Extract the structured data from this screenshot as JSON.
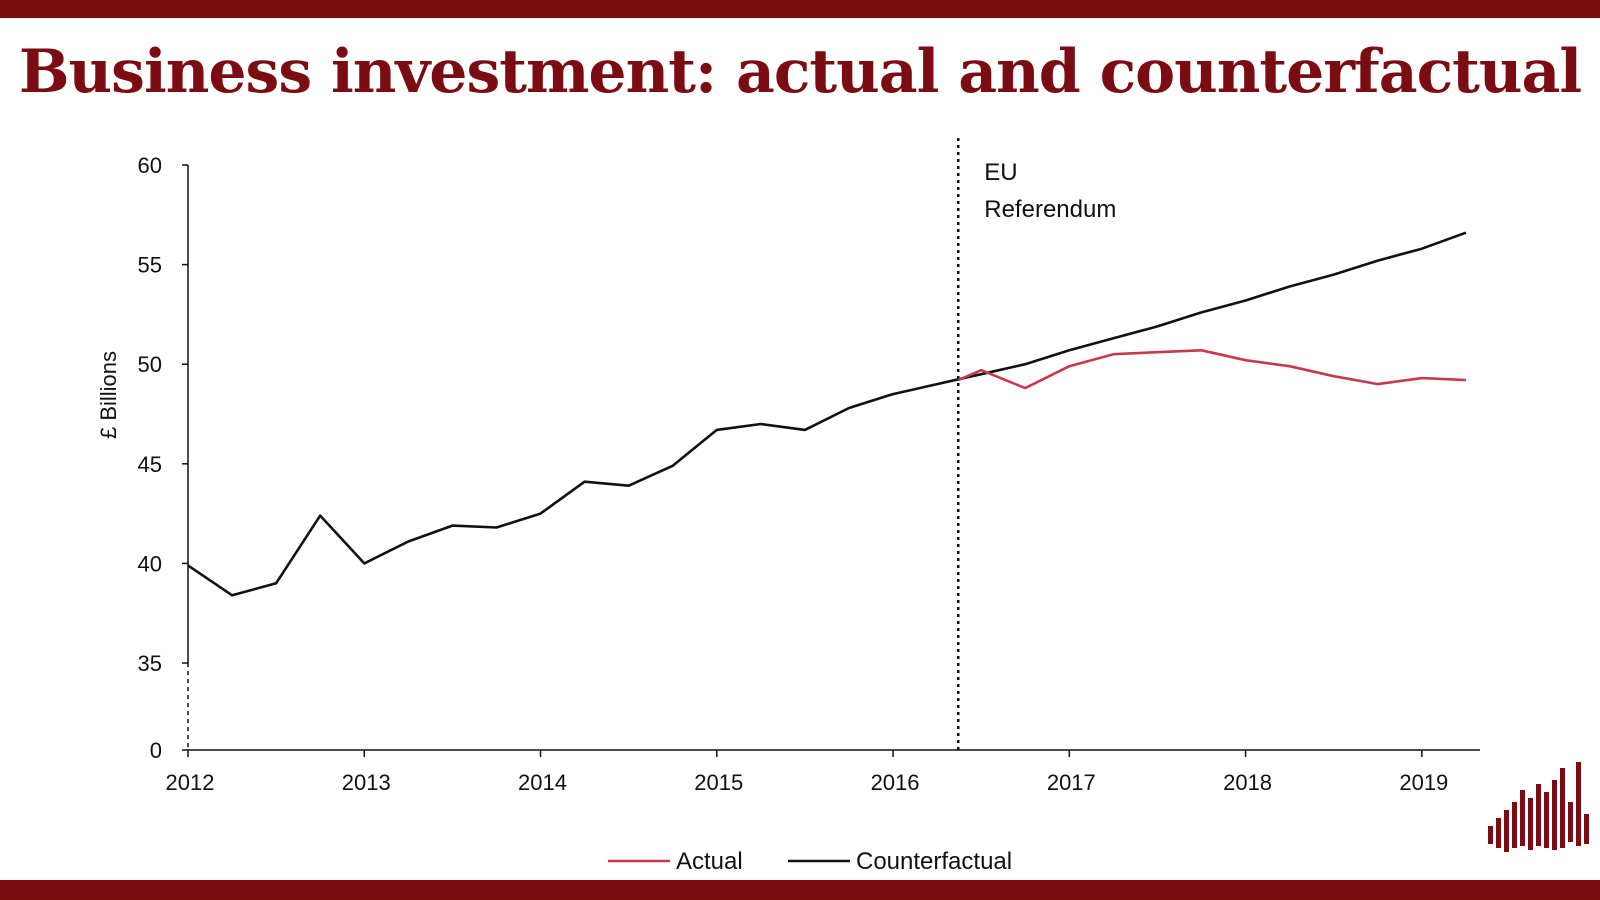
{
  "page": {
    "title": "Business investment: actual and counterfactual",
    "colors": {
      "brand": "#7a0c12",
      "actual": "#c8394d",
      "counterfactual": "#111111"
    },
    "logo_icon": "bar-waveform-logo-icon"
  },
  "chart_data": {
    "type": "line",
    "ylabel": "£ Billions",
    "xlabel": "",
    "xlim": [
      2012,
      2019.33
    ],
    "x_ticks": [
      2012,
      2013,
      2014,
      2015,
      2016,
      2017,
      2018,
      2019
    ],
    "y_ticks": [
      0,
      35,
      40,
      45,
      50,
      55,
      60
    ],
    "y_axis_break": "between 0 and 35",
    "ylim_upper": [
      35,
      60
    ],
    "grid": false,
    "legend_position": "bottom-center",
    "annotation": {
      "label_line1": "EU",
      "label_line2": "Referendum",
      "x": 2016.37,
      "style": "dotted vertical line"
    },
    "series": [
      {
        "name": "Actual",
        "color": "#c8394d",
        "points": [
          [
            2016.37,
            49.2
          ],
          [
            2016.5,
            49.7
          ],
          [
            2016.75,
            48.8
          ],
          [
            2017.0,
            49.9
          ],
          [
            2017.25,
            50.5
          ],
          [
            2017.5,
            50.6
          ],
          [
            2017.75,
            50.7
          ],
          [
            2018.0,
            50.2
          ],
          [
            2018.25,
            49.9
          ],
          [
            2018.5,
            49.4
          ],
          [
            2018.75,
            49.0
          ],
          [
            2019.0,
            49.3
          ],
          [
            2019.25,
            49.2
          ]
        ]
      },
      {
        "name": "Counterfactual",
        "color": "#111111",
        "points": [
          [
            2012.0,
            39.9
          ],
          [
            2012.25,
            38.4
          ],
          [
            2012.5,
            39.0
          ],
          [
            2012.75,
            42.4
          ],
          [
            2013.0,
            40.0
          ],
          [
            2013.25,
            41.1
          ],
          [
            2013.5,
            41.9
          ],
          [
            2013.75,
            41.8
          ],
          [
            2014.0,
            42.5
          ],
          [
            2014.25,
            44.1
          ],
          [
            2014.5,
            43.9
          ],
          [
            2014.75,
            44.9
          ],
          [
            2015.0,
            46.7
          ],
          [
            2015.25,
            47.0
          ],
          [
            2015.5,
            46.7
          ],
          [
            2015.75,
            47.8
          ],
          [
            2016.0,
            48.5
          ],
          [
            2016.25,
            49.0
          ],
          [
            2016.5,
            49.5
          ],
          [
            2016.75,
            50.0
          ],
          [
            2017.0,
            50.7
          ],
          [
            2017.25,
            51.3
          ],
          [
            2017.5,
            51.9
          ],
          [
            2017.75,
            52.6
          ],
          [
            2018.0,
            53.2
          ],
          [
            2018.25,
            53.9
          ],
          [
            2018.5,
            54.5
          ],
          [
            2018.75,
            55.2
          ],
          [
            2019.0,
            55.8
          ],
          [
            2019.25,
            56.6
          ]
        ]
      }
    ]
  }
}
